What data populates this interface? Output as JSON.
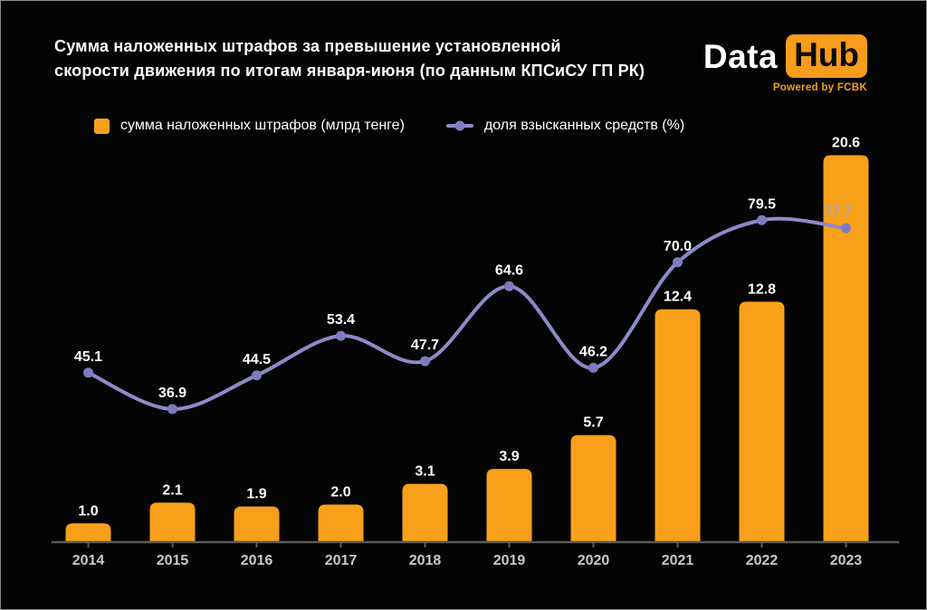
{
  "header": {
    "title_line1": "Сумма наложенных штрафов за превышение установленной",
    "title_line2": "скорости движения по итогам января-июня (по данным КПСиСУ ГП РК)",
    "logo": {
      "part1": "Data",
      "part2": "Hub",
      "powered": "Powered by FCBK"
    }
  },
  "legend": {
    "bar_label": "сумма наложенных штрафов (млрд тенге)",
    "line_label": "доля взысканных средств (%)"
  },
  "colors": {
    "background": "#040404",
    "bar": "#f9a01b",
    "line": "#8d8bc9",
    "dot": "#7e7cc0",
    "axis": "#5a5a5a",
    "tick_label": "#c9c9c9",
    "bar_value_label": "#ffffff",
    "line_value_label": "#ffffff",
    "line_value_label_on_bar": "#a7a5bd",
    "logo_accent": "#f89c1c"
  },
  "chart_data": {
    "type": "bar+line",
    "title": "Сумма наложенных штрафов за превышение установленной скорости движения по итогам января-июня (по данным КПСиСУ ГП РК)",
    "categories": [
      "2014",
      "2015",
      "2016",
      "2017",
      "2018",
      "2019",
      "2020",
      "2021",
      "2022",
      "2023"
    ],
    "series": [
      {
        "name": "сумма наложенных штрафов (млрд тенге)",
        "type": "bar",
        "values": [
          1.0,
          2.1,
          1.9,
          2.0,
          3.1,
          3.9,
          5.7,
          12.4,
          12.8,
          20.6
        ]
      },
      {
        "name": "доля взысканных средств (%)",
        "type": "line",
        "values": [
          45.1,
          36.9,
          44.5,
          53.4,
          47.7,
          64.6,
          46.2,
          70.0,
          79.5,
          77.7
        ]
      }
    ],
    "bar_axis_range": [
      0,
      22
    ],
    "line_axis_range": [
      0,
      100
    ],
    "grid": false,
    "legend_position": "top",
    "value_labels": true
  }
}
